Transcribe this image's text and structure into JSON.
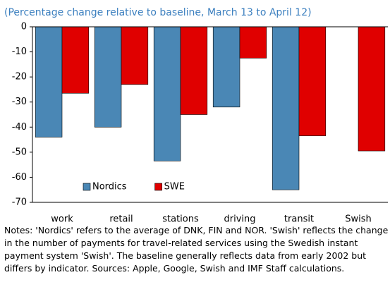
{
  "chart_data": {
    "type": "bar",
    "subtitle": "(Percentage change relative to baseline, March 13 to April 12)",
    "categories": [
      "work",
      "retail",
      "stations",
      "driving",
      "transit",
      "Swish"
    ],
    "series": [
      {
        "name": "Nordics",
        "color": "#4a87b5",
        "values": [
          -44,
          -40,
          -53.5,
          -32,
          -65,
          null
        ]
      },
      {
        "name": "SWE",
        "color": "#e00000",
        "values": [
          -26.5,
          -23,
          -35,
          -12.5,
          -43.5,
          -49.5
        ]
      }
    ],
    "ylim": [
      -70,
      0
    ],
    "yticks": [
      0,
      -10,
      -20,
      -30,
      -40,
      -50,
      -60,
      -70
    ],
    "legend": "lower-left",
    "notes": "Notes: 'Nordics' refers to the average of DNK, FIN and NOR. 'Swish' reflects the change in the number of payments for travel-related services using the Swedish instant payment system 'Swish'. The baseline generally reflects data from early 2002 but differs by indicator. Sources: Apple, Google, Swish and IMF Staff calculations."
  }
}
